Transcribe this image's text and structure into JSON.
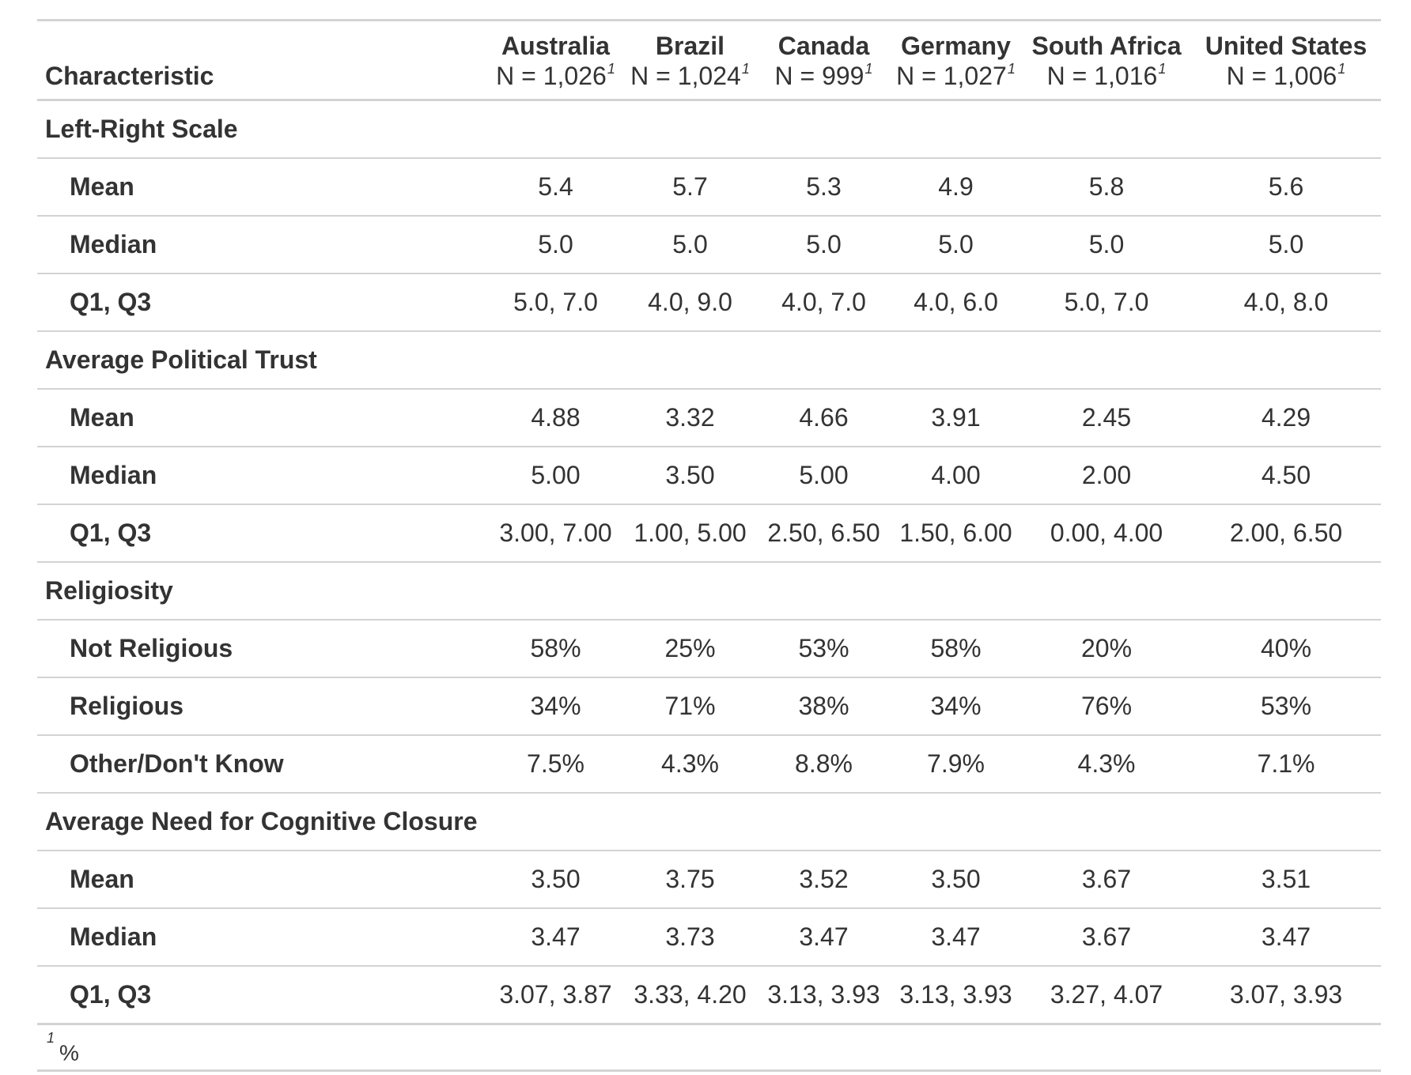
{
  "header": {
    "characteristic": "Characteristic",
    "columns": [
      {
        "name": "Australia",
        "n": "N = 1,026",
        "fn": "1"
      },
      {
        "name": "Brazil",
        "n": "N = 1,024",
        "fn": "1"
      },
      {
        "name": "Canada",
        "n": "N = 999",
        "fn": "1"
      },
      {
        "name": "Germany",
        "n": "N = 1,027",
        "fn": "1"
      },
      {
        "name": "South Africa",
        "n": "N = 1,016",
        "fn": "1"
      },
      {
        "name": "United States",
        "n": "N = 1,006",
        "fn": "1"
      }
    ]
  },
  "groups": [
    {
      "label": "Left-Right Scale",
      "rows": [
        {
          "label": "Mean",
          "values": [
            "5.4",
            "5.7",
            "5.3",
            "4.9",
            "5.8",
            "5.6"
          ]
        },
        {
          "label": "Median",
          "values": [
            "5.0",
            "5.0",
            "5.0",
            "5.0",
            "5.0",
            "5.0"
          ]
        },
        {
          "label": "Q1, Q3",
          "values": [
            "5.0, 7.0",
            "4.0, 9.0",
            "4.0, 7.0",
            "4.0, 6.0",
            "5.0, 7.0",
            "4.0, 8.0"
          ]
        }
      ]
    },
    {
      "label": "Average Political Trust",
      "rows": [
        {
          "label": "Mean",
          "values": [
            "4.88",
            "3.32",
            "4.66",
            "3.91",
            "2.45",
            "4.29"
          ]
        },
        {
          "label": "Median",
          "values": [
            "5.00",
            "3.50",
            "5.00",
            "4.00",
            "2.00",
            "4.50"
          ]
        },
        {
          "label": "Q1, Q3",
          "values": [
            "3.00, 7.00",
            "1.00, 5.00",
            "2.50, 6.50",
            "1.50, 6.00",
            "0.00, 4.00",
            "2.00, 6.50"
          ]
        }
      ]
    },
    {
      "label": "Religiosity",
      "rows": [
        {
          "label": "Not Religious",
          "values": [
            "58%",
            "25%",
            "53%",
            "58%",
            "20%",
            "40%"
          ]
        },
        {
          "label": "Religious",
          "values": [
            "34%",
            "71%",
            "38%",
            "34%",
            "76%",
            "53%"
          ]
        },
        {
          "label": "Other/Don't Know",
          "values": [
            "7.5%",
            "4.3%",
            "8.8%",
            "7.9%",
            "4.3%",
            "7.1%"
          ]
        }
      ]
    },
    {
      "label": "Average Need for Cognitive Closure",
      "rows": [
        {
          "label": "Mean",
          "values": [
            "3.50",
            "3.75",
            "3.52",
            "3.50",
            "3.67",
            "3.51"
          ]
        },
        {
          "label": "Median",
          "values": [
            "3.47",
            "3.73",
            "3.47",
            "3.47",
            "3.67",
            "3.47"
          ]
        },
        {
          "label": "Q1, Q3",
          "values": [
            "3.07, 3.87",
            "3.33, 4.20",
            "3.13, 3.93",
            "3.13, 3.93",
            "3.27, 4.07",
            "3.07, 3.93"
          ]
        }
      ]
    }
  ],
  "footnote": {
    "marker": "1",
    "text": "%"
  }
}
